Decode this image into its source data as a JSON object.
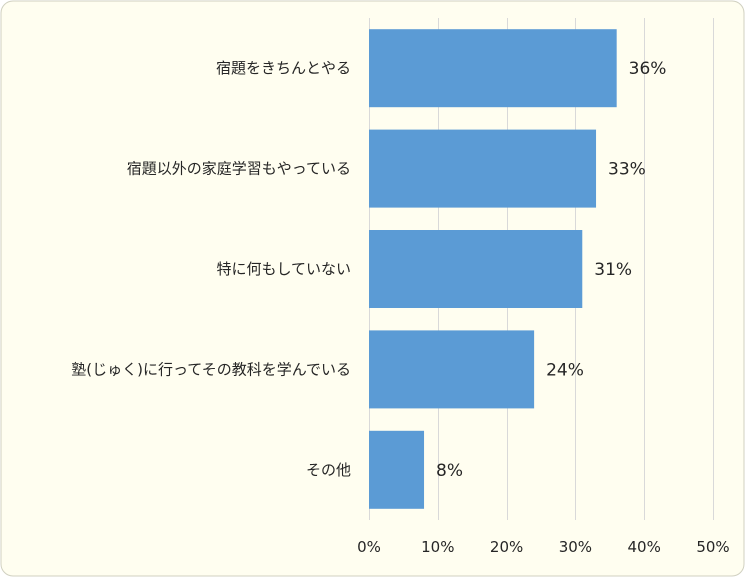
{
  "colors": {
    "background": "#fffef0",
    "border": "#d0d0c0",
    "bar": "#5b9bd5",
    "grid": "#d9d9d9",
    "text": "#262626"
  },
  "chart_data": {
    "type": "bar",
    "orientation": "horizontal",
    "title": "",
    "xlabel": "",
    "ylabel": "",
    "categories": [
      "宿題をきちんとやる",
      "宿題以外の家庭学習もやっている",
      "特に何もしていない",
      "塾(じゅく)に行ってその教科を学んでいる",
      "その他"
    ],
    "values": [
      36,
      33,
      31,
      24,
      8
    ],
    "value_labels": [
      "36%",
      "33%",
      "31%",
      "24%",
      "8%"
    ],
    "xlim": [
      0,
      50
    ],
    "xticks": [
      0,
      10,
      20,
      30,
      40,
      50
    ],
    "xtick_labels": [
      "0%",
      "10%",
      "20%",
      "30%",
      "40%",
      "50%"
    ],
    "grid": true,
    "legend": "none"
  }
}
